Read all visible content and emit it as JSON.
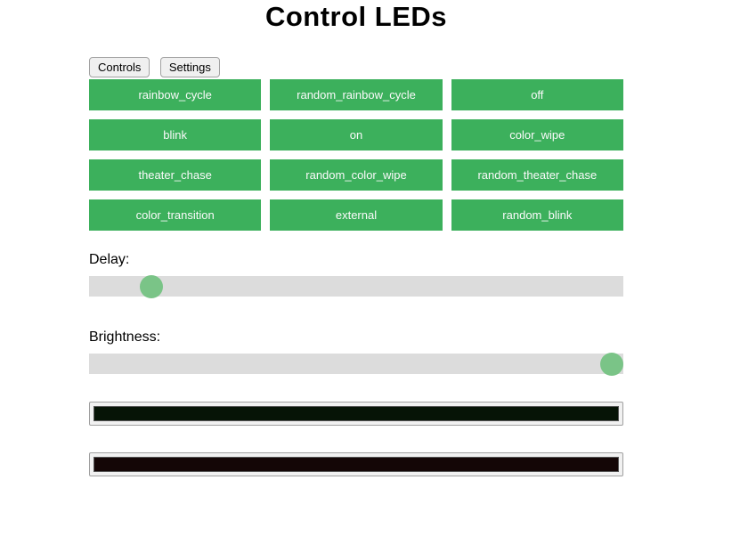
{
  "page": {
    "title": "Control LEDs"
  },
  "tabs": {
    "controls": "Controls",
    "settings": "Settings"
  },
  "modes": [
    "rainbow_cycle",
    "random_rainbow_cycle",
    "off",
    "blink",
    "on",
    "color_wipe",
    "theater_chase",
    "random_color_wipe",
    "random_theater_chase",
    "color_transition",
    "external",
    "random_blink"
  ],
  "sliders": {
    "delay": {
      "label": "Delay:",
      "value": 10,
      "min": 0,
      "max": 100
    },
    "brightness": {
      "label": "Brightness:",
      "value": 100,
      "min": 0,
      "max": 100
    }
  },
  "color_pickers": {
    "color1": "#061406",
    "color2": "#140606"
  },
  "theme": {
    "button_green": "#3cb05c",
    "thumb_green": "#7ac487",
    "track_gray": "#dcdcdc"
  }
}
